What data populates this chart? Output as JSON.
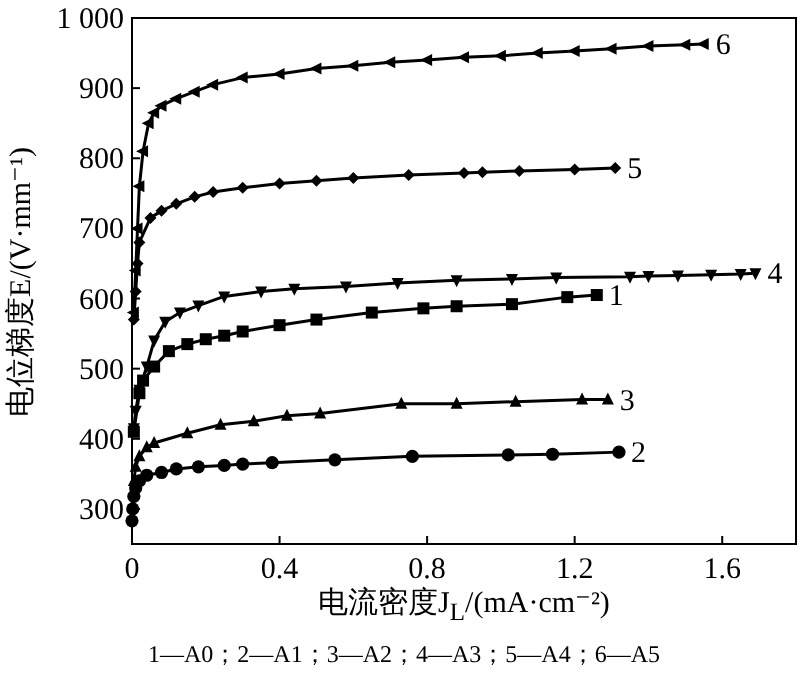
{
  "chart_data": {
    "type": "line",
    "xlabel": "电流密度J$_{L}$/(mA·cm⁻²)",
    "ylabel": "电位梯度E/(V·mm⁻¹)",
    "xlim": [
      0,
      1.8
    ],
    "xticks": [
      0,
      0.4,
      0.8,
      1.2,
      1.6
    ],
    "ylim": [
      250,
      1000
    ],
    "yticks": [
      300,
      400,
      500,
      600,
      700,
      800,
      900,
      {
        "value": 1000,
        "label": "1 000"
      }
    ],
    "grid": false,
    "line_style": "solid",
    "annotations": [
      "1—A0；2—A1；3—A2；4—A3；5—A4；6—A5"
    ],
    "series": [
      {
        "name": "1",
        "color": "#000000",
        "marker": "square",
        "x": [
          0.005,
          0.02,
          0.03,
          0.06,
          0.1,
          0.15,
          0.2,
          0.25,
          0.3,
          0.4,
          0.5,
          0.65,
          0.79,
          0.88,
          1.03,
          1.18,
          1.26
        ],
        "values": [
          410,
          465,
          483,
          503,
          525,
          535,
          542,
          547,
          553,
          562,
          570,
          580,
          586,
          589,
          592,
          602,
          605
        ]
      },
      {
        "name": "2",
        "color": "#000000",
        "marker": "circle",
        "x": [
          0,
          0.002,
          0.005,
          0.01,
          0.02,
          0.04,
          0.08,
          0.12,
          0.18,
          0.25,
          0.3,
          0.38,
          0.55,
          0.76,
          1.02,
          1.14,
          1.32
        ],
        "values": [
          283,
          300,
          318,
          330,
          340,
          348,
          352,
          357,
          360,
          362,
          364,
          366,
          370,
          375,
          377,
          378,
          381
        ]
      },
      {
        "name": "3",
        "color": "#000000",
        "marker": "triangle",
        "x": [
          0.005,
          0.01,
          0.02,
          0.04,
          0.06,
          0.15,
          0.24,
          0.33,
          0.42,
          0.51,
          0.73,
          0.88,
          1.04,
          1.22,
          1.29
        ],
        "values": [
          340,
          360,
          375,
          388,
          394,
          408,
          420,
          425,
          433,
          436,
          450,
          450,
          453,
          456,
          456
        ]
      },
      {
        "name": "4",
        "color": "#000000",
        "marker": "triangle-down",
        "x": [
          0.005,
          0.01,
          0.02,
          0.04,
          0.06,
          0.09,
          0.13,
          0.18,
          0.25,
          0.35,
          0.44,
          0.58,
          0.72,
          0.88,
          1.03,
          1.15,
          1.35,
          1.4,
          1.48,
          1.57,
          1.65,
          1.69
        ],
        "values": [
          415,
          440,
          470,
          503,
          540,
          567,
          580,
          590,
          603,
          610,
          614,
          617,
          622,
          626,
          628,
          630,
          631,
          632,
          633,
          634,
          635,
          636
        ]
      },
      {
        "name": "5",
        "color": "#000000",
        "marker": "diamond",
        "x": [
          0.005,
          0.01,
          0.015,
          0.02,
          0.05,
          0.08,
          0.12,
          0.17,
          0.22,
          0.3,
          0.4,
          0.5,
          0.6,
          0.75,
          0.9,
          0.95,
          1.05,
          1.2,
          1.31
        ],
        "values": [
          570,
          610,
          650,
          680,
          715,
          725,
          735,
          745,
          752,
          758,
          764,
          768,
          772,
          776,
          779,
          780,
          782,
          784,
          786
        ]
      },
      {
        "name": "6",
        "color": "#000000",
        "marker": "triangle-left",
        "x": [
          0.005,
          0.01,
          0.015,
          0.02,
          0.03,
          0.045,
          0.06,
          0.08,
          0.12,
          0.17,
          0.22,
          0.3,
          0.4,
          0.5,
          0.6,
          0.7,
          0.8,
          0.9,
          1.0,
          1.1,
          1.2,
          1.3,
          1.4,
          1.5,
          1.55
        ],
        "values": [
          580,
          640,
          700,
          760,
          810,
          850,
          865,
          875,
          885,
          895,
          905,
          915,
          920,
          928,
          932,
          937,
          940,
          944,
          946,
          950,
          953,
          956,
          960,
          962,
          963
        ]
      }
    ]
  }
}
